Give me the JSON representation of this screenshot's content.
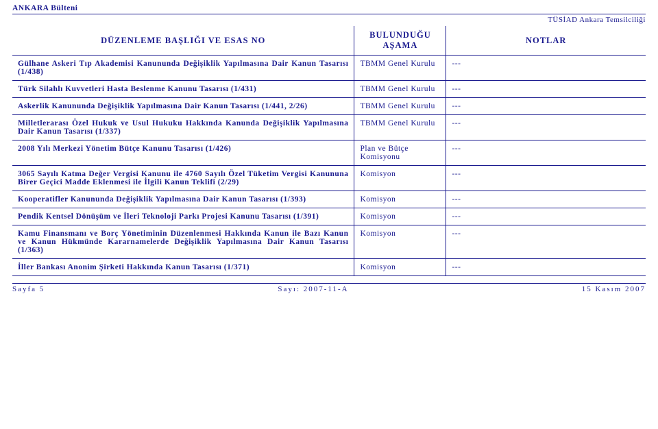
{
  "header": {
    "bulletin": "ANKARA Bülteni",
    "org": "TÜSİAD Ankara Temsilciliği"
  },
  "columns": {
    "title": "DÜZENLEME BAŞLIĞI VE ESAS NO",
    "stage": "BULUNDUĞU AŞAMA",
    "notes": "NOTLAR"
  },
  "rows": [
    {
      "title": "Gülhane Askeri Tıp Akademisi Kanununda Değişiklik Yapılmasına Dair Kanun Tasarısı (1/438)",
      "stage": "TBMM Genel Kurulu",
      "notes": "---"
    },
    {
      "title": "Türk Silahlı Kuvvetleri Hasta Beslenme Kanunu Tasarısı (1/431)",
      "stage": "TBMM Genel Kurulu",
      "notes": "---"
    },
    {
      "title": "Askerlik Kanununda Değişiklik Yapılmasına Dair Kanun Tasarısı (1/441, 2/26)",
      "stage": "TBMM Genel Kurulu",
      "notes": "---"
    },
    {
      "title": "Milletlerarası Özel Hukuk ve Usul Hukuku Hakkında Kanunda Değişiklik Yapılmasına Dair Kanun Tasarısı (1/337)",
      "stage": "TBMM Genel Kurulu",
      "notes": "---"
    },
    {
      "title": "2008 Yılı Merkezi Yönetim Bütçe Kanunu Tasarısı (1/426)",
      "stage": "Plan ve Bütçe Komisyonu",
      "notes": "---"
    },
    {
      "title": "3065 Sayılı Katma Değer Vergisi Kanunu ile 4760 Sayılı Özel Tüketim Vergisi Kanununa Birer Geçici Madde Eklenmesi ile İlgili Kanun Teklifi (2/29)",
      "stage": "Komisyon",
      "notes": "---"
    },
    {
      "title": "Kooperatifler Kanununda Değişiklik Yapılmasına Dair Kanun Tasarısı (1/393)",
      "stage": "Komisyon",
      "notes": "---"
    },
    {
      "title": "Pendik Kentsel Dönüşüm ve İleri Teknoloji Parkı Projesi Kanunu Tasarısı (1/391)",
      "stage": "Komisyon",
      "notes": "---"
    },
    {
      "title": "Kamu Finansmanı ve Borç Yönetiminin Düzenlenmesi Hakkında Kanun ile Bazı Kanun ve Kanun Hükmünde Kararnamelerde Değişiklik Yapılmasına Dair Kanun Tasarısı (1/363)",
      "stage": "Komisyon",
      "notes": "---"
    },
    {
      "title": "İller Bankası Anonim Şirketi Hakkında Kanun Tasarısı (1/371)",
      "stage": "Komisyon",
      "notes": "---"
    }
  ],
  "footer": {
    "page": "Sayfa 5",
    "issue": "Sayı: 2007-11-A",
    "date": "15 Kasım 2007"
  },
  "styling": {
    "text_color": "#1a1a8f",
    "border_color": "#1a1a8f",
    "background_color": "#ffffff",
    "font_family": "Georgia, serif",
    "header_fontsize": 12.5,
    "cell_fontsize": 11.5,
    "col_widths_pct": [
      54,
      14.5,
      31.5
    ]
  }
}
